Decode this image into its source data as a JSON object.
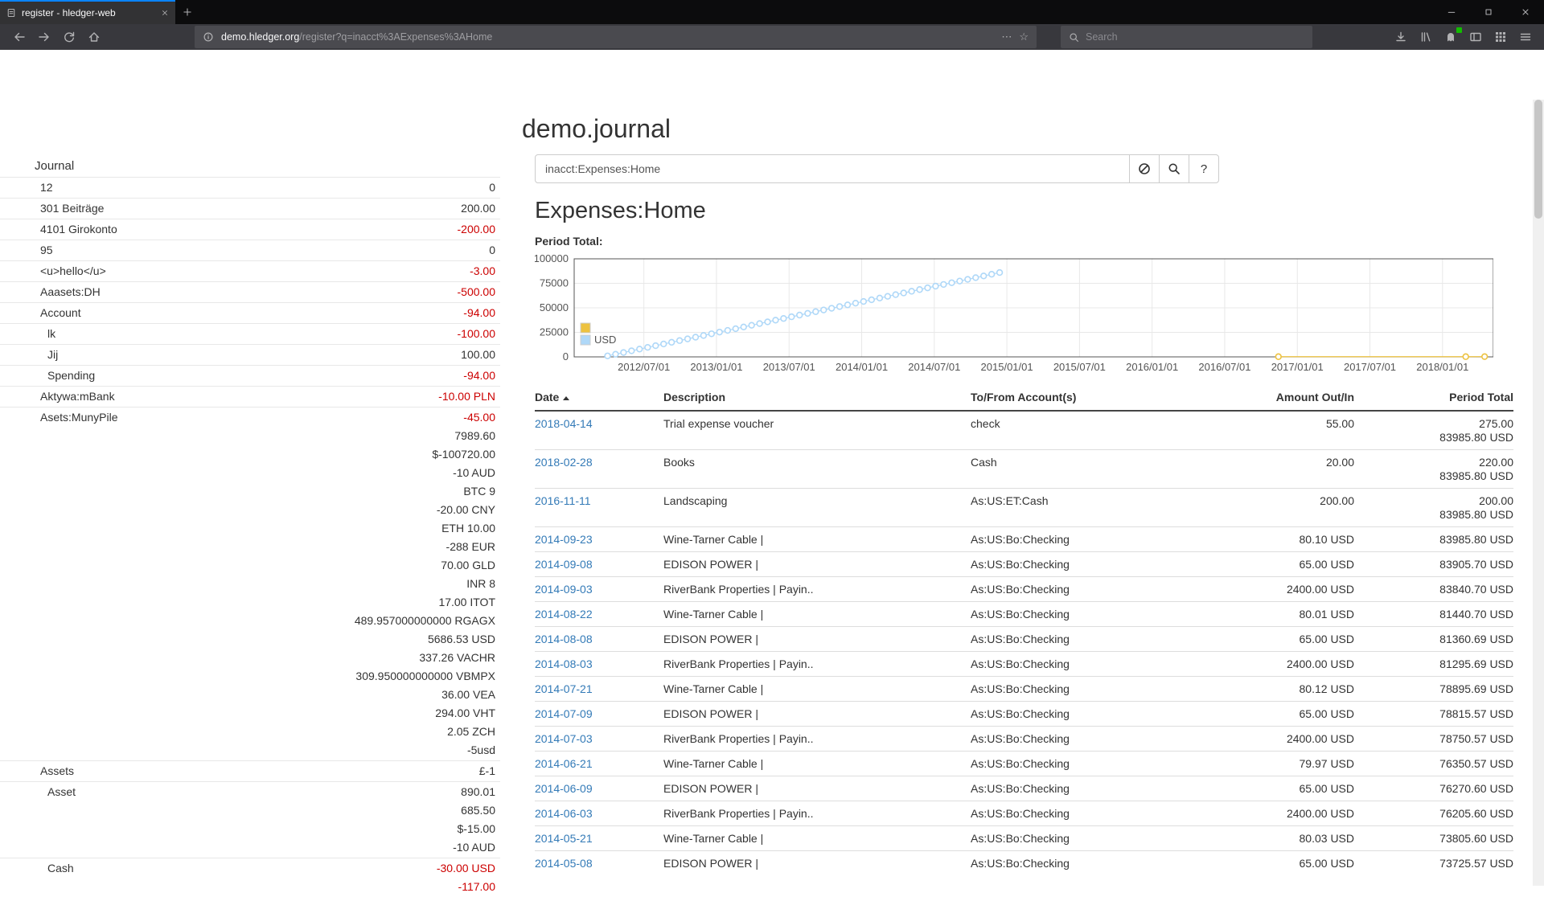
{
  "browser": {
    "tab_title": "register - hledger-web",
    "url_domain": "demo.hledger.org",
    "url_path": "/register?q=inacct%3AExpenses%3AHome",
    "page_actions_glyph": "⋯",
    "bookmark_glyph": "☆",
    "search_placeholder": "Search"
  },
  "page": {
    "title": "demo.journal",
    "search_value": "inacct:Expenses:Home",
    "help_label": "?",
    "account_heading": "Expenses:Home",
    "period_total_label": "Period Total:"
  },
  "sidebar": {
    "heading": "Journal",
    "accounts": [
      {
        "name": "12",
        "indent": 1,
        "lines": [
          {
            "t": "0"
          }
        ]
      },
      {
        "name": "301 Beiträge",
        "indent": 1,
        "lines": [
          {
            "t": "200.00"
          }
        ]
      },
      {
        "name": "4101 Girokonto",
        "indent": 1,
        "lines": [
          {
            "t": "-200.00",
            "neg": true
          }
        ]
      },
      {
        "name": "95",
        "indent": 1,
        "lines": [
          {
            "t": "0"
          }
        ]
      },
      {
        "name": "<u>hello</u>",
        "indent": 1,
        "lines": [
          {
            "t": "-3.00",
            "neg": true
          }
        ]
      },
      {
        "name": "Aaasets:DH",
        "indent": 1,
        "lines": [
          {
            "t": "-500.00",
            "neg": true
          }
        ]
      },
      {
        "name": "Account",
        "indent": 1,
        "lines": [
          {
            "t": "-94.00",
            "neg": true
          }
        ]
      },
      {
        "name": "lk",
        "indent": 2,
        "lines": [
          {
            "t": "-100.00",
            "neg": true
          }
        ]
      },
      {
        "name": "Jij",
        "indent": 2,
        "lines": [
          {
            "t": "100.00"
          }
        ]
      },
      {
        "name": "Spending",
        "indent": 2,
        "lines": [
          {
            "t": "-94.00",
            "neg": true
          }
        ]
      },
      {
        "name": "Aktywa:mBank",
        "indent": 1,
        "lines": [
          {
            "t": "-10.00 PLN",
            "neg": true
          }
        ]
      },
      {
        "name": "Asets:MunyPile",
        "indent": 1,
        "lines": [
          {
            "t": "-45.00",
            "neg": true
          },
          {
            "t": "7989.60"
          },
          {
            "t": "$-100720.00"
          },
          {
            "t": "-10 AUD"
          },
          {
            "t": "BTC 9"
          },
          {
            "t": "-20.00 CNY"
          },
          {
            "t": "ETH 10.00"
          },
          {
            "t": "-288 EUR"
          },
          {
            "t": "70.00 GLD"
          },
          {
            "t": "INR 8"
          },
          {
            "t": "17.00 ITOT"
          },
          {
            "t": "489.957000000000 RGAGX"
          },
          {
            "t": "5686.53 USD"
          },
          {
            "t": "337.26 VACHR"
          },
          {
            "t": "309.950000000000 VBMPX"
          },
          {
            "t": "36.00 VEA"
          },
          {
            "t": "294.00 VHT"
          },
          {
            "t": "2.05 ZCH"
          },
          {
            "t": "-5usd"
          }
        ]
      },
      {
        "name": "Assets",
        "indent": 1,
        "lines": [
          {
            "t": "£-1"
          }
        ]
      },
      {
        "name": "Asset",
        "indent": 2,
        "lines": [
          {
            "t": "890.01"
          },
          {
            "t": "685.50"
          },
          {
            "t": "$-15.00"
          },
          {
            "t": "-10 AUD"
          }
        ]
      },
      {
        "name": "Cash",
        "indent": 2,
        "lines": [
          {
            "t": "-30.00 USD",
            "neg": true
          },
          {
            "t": "-117.00",
            "neg": true
          }
        ]
      }
    ]
  },
  "table": {
    "headers": [
      "Date",
      "Description",
      "To/From Account(s)",
      "Amount Out/In",
      "Period Total"
    ],
    "rows": [
      {
        "date": "2018-04-14",
        "description": "Trial expense voucher",
        "accounts": "check",
        "amount": "55.00",
        "totals": [
          "275.00",
          "83985.80 USD"
        ]
      },
      {
        "date": "2018-02-28",
        "description": "Books",
        "accounts": "Cash",
        "amount": "20.00",
        "totals": [
          "220.00",
          "83985.80 USD"
        ]
      },
      {
        "date": "2016-11-11",
        "description": "Landscaping",
        "accounts": "As:US:ET:Cash",
        "amount": "200.00",
        "totals": [
          "200.00",
          "83985.80 USD"
        ]
      },
      {
        "date": "2014-09-23",
        "description": "Wine-Tarner Cable |",
        "accounts": "As:US:Bo:Checking",
        "amount": "80.10 USD",
        "totals": [
          "83985.80 USD"
        ]
      },
      {
        "date": "2014-09-08",
        "description": "EDISON POWER |",
        "accounts": "As:US:Bo:Checking",
        "amount": "65.00 USD",
        "totals": [
          "83905.70 USD"
        ]
      },
      {
        "date": "2014-09-03",
        "description": "RiverBank Properties | Payin..",
        "accounts": "As:US:Bo:Checking",
        "amount": "2400.00 USD",
        "totals": [
          "83840.70 USD"
        ]
      },
      {
        "date": "2014-08-22",
        "description": "Wine-Tarner Cable |",
        "accounts": "As:US:Bo:Checking",
        "amount": "80.01 USD",
        "totals": [
          "81440.70 USD"
        ]
      },
      {
        "date": "2014-08-08",
        "description": "EDISON POWER |",
        "accounts": "As:US:Bo:Checking",
        "amount": "65.00 USD",
        "totals": [
          "81360.69 USD"
        ]
      },
      {
        "date": "2014-08-03",
        "description": "RiverBank Properties | Payin..",
        "accounts": "As:US:Bo:Checking",
        "amount": "2400.00 USD",
        "totals": [
          "81295.69 USD"
        ]
      },
      {
        "date": "2014-07-21",
        "description": "Wine-Tarner Cable |",
        "accounts": "As:US:Bo:Checking",
        "amount": "80.12 USD",
        "totals": [
          "78895.69 USD"
        ]
      },
      {
        "date": "2014-07-09",
        "description": "EDISON POWER |",
        "accounts": "As:US:Bo:Checking",
        "amount": "65.00 USD",
        "totals": [
          "78815.57 USD"
        ]
      },
      {
        "date": "2014-07-03",
        "description": "RiverBank Properties | Payin..",
        "accounts": "As:US:Bo:Checking",
        "amount": "2400.00 USD",
        "totals": [
          "78750.57 USD"
        ]
      },
      {
        "date": "2014-06-21",
        "description": "Wine-Tarner Cable |",
        "accounts": "As:US:Bo:Checking",
        "amount": "79.97 USD",
        "totals": [
          "76350.57 USD"
        ]
      },
      {
        "date": "2014-06-09",
        "description": "EDISON POWER |",
        "accounts": "As:US:Bo:Checking",
        "amount": "65.00 USD",
        "totals": [
          "76270.60 USD"
        ]
      },
      {
        "date": "2014-06-03",
        "description": "RiverBank Properties | Payin..",
        "accounts": "As:US:Bo:Checking",
        "amount": "2400.00 USD",
        "totals": [
          "76205.60 USD"
        ]
      },
      {
        "date": "2014-05-21",
        "description": "Wine-Tarner Cable |",
        "accounts": "As:US:Bo:Checking",
        "amount": "80.03 USD",
        "totals": [
          "73805.60 USD"
        ]
      },
      {
        "date": "2014-05-08",
        "description": "EDISON POWER |",
        "accounts": "As:US:Bo:Checking",
        "amount": "65.00 USD",
        "totals": [
          "73725.57 USD"
        ]
      }
    ]
  },
  "chart_data": {
    "type": "scatter",
    "title": "Period Total:",
    "xlabel": "",
    "ylabel": "",
    "grid": true,
    "legend_position": "left-inside",
    "xlim": [
      2012.02,
      2018.35
    ],
    "ylim": [
      0,
      100000
    ],
    "yticks": [
      0,
      25000,
      50000,
      75000,
      100000
    ],
    "xticks": [
      {
        "x": 2012.5,
        "label": "2012/07/01"
      },
      {
        "x": 2013.0,
        "label": "2013/01/01"
      },
      {
        "x": 2013.5,
        "label": "2013/07/01"
      },
      {
        "x": 2014.0,
        "label": "2014/01/01"
      },
      {
        "x": 2014.5,
        "label": "2014/07/01"
      },
      {
        "x": 2015.0,
        "label": "2015/01/01"
      },
      {
        "x": 2015.5,
        "label": "2015/07/01"
      },
      {
        "x": 2016.0,
        "label": "2016/01/01"
      },
      {
        "x": 2016.5,
        "label": "2016/07/01"
      },
      {
        "x": 2017.0,
        "label": "2017/01/01"
      },
      {
        "x": 2017.5,
        "label": "2017/07/01"
      },
      {
        "x": 2018.0,
        "label": "2018/01/01"
      }
    ],
    "legend": [
      {
        "label": "",
        "color": "#edc240"
      },
      {
        "label": "USD",
        "color": "#afd8f8"
      }
    ],
    "series": [
      {
        "name": "",
        "color": "#edc240",
        "points": [
          [
            2016.87,
            200
          ],
          [
            2018.16,
            220
          ],
          [
            2018.29,
            275
          ]
        ]
      },
      {
        "name": "USD",
        "color": "#afd8f8",
        "points": [
          [
            2012.25,
            1000
          ],
          [
            2012.305,
            2735
          ],
          [
            2012.36,
            4469
          ],
          [
            2012.415,
            6204
          ],
          [
            2012.47,
            7939
          ],
          [
            2012.526,
            9674
          ],
          [
            2012.581,
            11408
          ],
          [
            2012.636,
            13143
          ],
          [
            2012.691,
            14878
          ],
          [
            2012.746,
            16612
          ],
          [
            2012.801,
            18347
          ],
          [
            2012.856,
            20082
          ],
          [
            2012.911,
            21816
          ],
          [
            2012.966,
            23551
          ],
          [
            2013.021,
            25286
          ],
          [
            2013.077,
            27021
          ],
          [
            2013.132,
            28755
          ],
          [
            2013.187,
            30490
          ],
          [
            2013.242,
            32225
          ],
          [
            2013.297,
            33959
          ],
          [
            2013.352,
            35694
          ],
          [
            2013.407,
            37429
          ],
          [
            2013.462,
            39163
          ],
          [
            2013.517,
            40898
          ],
          [
            2013.572,
            42633
          ],
          [
            2013.628,
            44368
          ],
          [
            2013.683,
            46102
          ],
          [
            2013.738,
            47837
          ],
          [
            2013.793,
            49572
          ],
          [
            2013.848,
            51306
          ],
          [
            2013.903,
            53041
          ],
          [
            2013.958,
            54776
          ],
          [
            2014.013,
            56510
          ],
          [
            2014.068,
            58245
          ],
          [
            2014.124,
            59980
          ],
          [
            2014.179,
            61715
          ],
          [
            2014.234,
            63449
          ],
          [
            2014.289,
            65184
          ],
          [
            2014.344,
            66919
          ],
          [
            2014.399,
            68653
          ],
          [
            2014.454,
            70388
          ],
          [
            2014.509,
            72123
          ],
          [
            2014.564,
            73857
          ],
          [
            2014.62,
            75592
          ],
          [
            2014.675,
            77327
          ],
          [
            2014.73,
            79062
          ],
          [
            2014.785,
            80796
          ],
          [
            2014.84,
            82531
          ],
          [
            2014.895,
            84266
          ],
          [
            2014.95,
            86000
          ]
        ]
      }
    ]
  }
}
